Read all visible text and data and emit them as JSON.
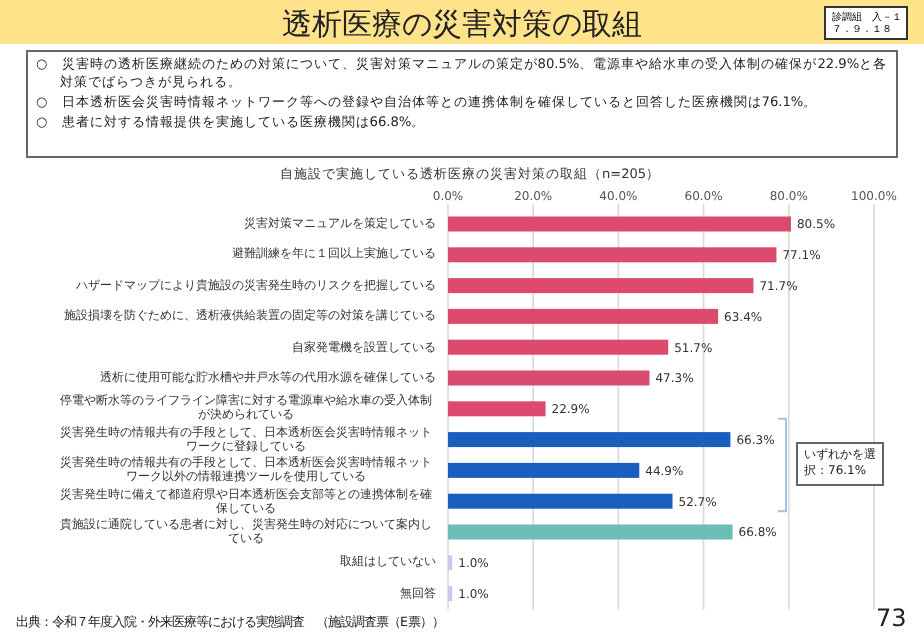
{
  "chart_data": {
    "type": "bar",
    "orientation": "horizontal",
    "title": "透析医療の災害対策の取組",
    "subtitle": "自施設で実施している透析医療の災害対策の取組（n=205）",
    "categories": [
      "災害対策マニュアルを策定している",
      "避難訓練を年に１回以上実施している",
      "ハザードマップにより貴施設の災害発生時のリスクを把握している",
      "施設損壊を防ぐために、透析液供給装置の固定等の対策を講じている",
      "自家発電機を設置している",
      "透析に使用可能な貯水槽や井戸水等の代用水源を確保している",
      "停電や断水等のライフライン障害に対する電源車や給水車の受入体制が決められている",
      "災害発生時の情報共有の手段として、日本透析医会災害時情報ネットワークに登録している",
      "災害発生時の情報共有の手段として、日本透析医会災害時情報ネットワーク以外の情報連携ツールを使用している",
      "災害発生時に備えて都道府県や日本透析医会支部等との連携体制を確保している",
      "貴施設に通院している患者に対し、災害発生時の対応について案内している",
      "取組はしていない",
      "無回答"
    ],
    "values": [
      80.5,
      77.1,
      71.7,
      63.4,
      51.7,
      47.3,
      22.9,
      66.3,
      44.9,
      52.7,
      66.8,
      1.0,
      1.0
    ],
    "colors": [
      "#dc4a6e",
      "#dc4a6e",
      "#dc4a6e",
      "#dc4a6e",
      "#dc4a6e",
      "#dc4a6e",
      "#dc4a6e",
      "#1a5fbf",
      "#1a5fbf",
      "#1a5fbf",
      "#6cbdb5",
      "#c9c9ea",
      "#c9c9ea"
    ],
    "value_labels": [
      "80.5%",
      "77.1%",
      "71.7%",
      "63.4%",
      "51.7%",
      "47.3%",
      "22.9%",
      "66.3%",
      "44.9%",
      "52.7%",
      "66.8%",
      "1.0%",
      "1.0%"
    ],
    "xlim": [
      0,
      100
    ],
    "xticks": [
      {
        "value": 0,
        "label": "0.0%"
      },
      {
        "value": 20,
        "label": "20.0%"
      },
      {
        "value": 40,
        "label": "40.0%"
      },
      {
        "value": 60,
        "label": "60.0%"
      },
      {
        "value": 80,
        "label": "80.0%"
      },
      {
        "value": 100,
        "label": "100.0%"
      }
    ],
    "grid": "x",
    "annotations": [
      "○　災害時の透析医療継続のための対策について、災害対策マニュアルの策定が80.5%、電源車や給水車の受入体制の確保が22.9%と各対策でばらつきが見られる。",
      "○　日本透析医会災害時情報ネットワーク等への登録や自治体等との連携体制を確保していると回答した医療機関は76.1%。",
      "○　患者に対する情報提供を実施している医療機関は66.8%。",
      "いずれかを選択：76.1%",
      "出典：令和７年度入院・外来医療等における実態調査　（施設調査票（E票））",
      "診調組　入－１",
      "７．９．１８",
      "73"
    ]
  }
}
